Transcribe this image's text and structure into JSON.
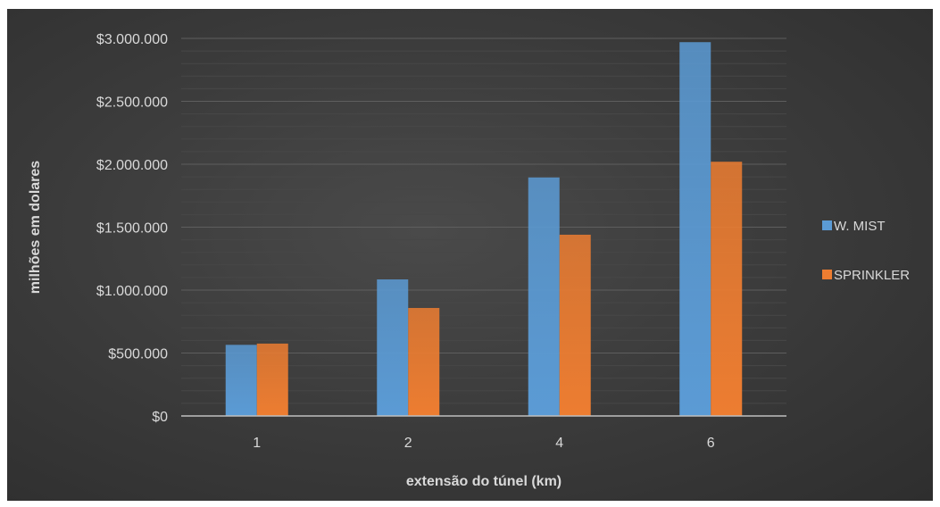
{
  "chart_data": {
    "type": "bar",
    "categories": [
      "1",
      "2",
      "4",
      "6"
    ],
    "series": [
      {
        "name": "W. MIST",
        "values": [
          565000,
          1085000,
          1895000,
          2970000
        ],
        "color": "#5b9bd5"
      },
      {
        "name": "SPRINKLER",
        "values": [
          575000,
          858000,
          1440000,
          2020000
        ],
        "color": "#ed7d31"
      }
    ],
    "title": "",
    "xlabel": "extensão do túnel (km)",
    "ylabel": "milhões em dolares",
    "ylim": [
      0,
      3000000
    ],
    "yticks": [
      0,
      500000,
      1000000,
      1500000,
      2000000,
      2500000,
      3000000
    ],
    "ytick_labels": [
      "$0",
      "$500.000",
      "$1.000.000",
      "$1.500.000",
      "$2.000.000",
      "$2.500.000",
      "$3.000.000"
    ],
    "grid": true,
    "legend_position": "right"
  }
}
